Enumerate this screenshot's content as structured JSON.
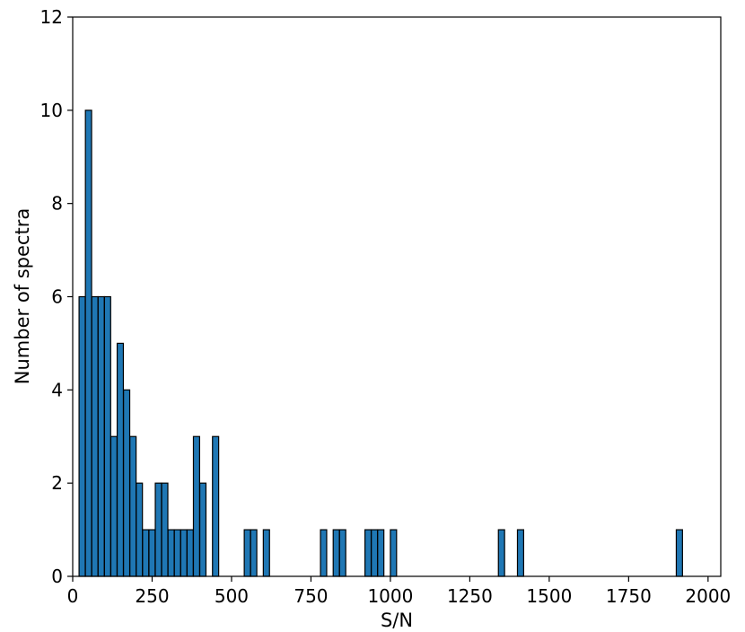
{
  "chart_data": {
    "type": "bar",
    "xlabel": "S/N",
    "ylabel": "Number of spectra",
    "xlim": [
      0,
      2040
    ],
    "ylim": [
      0,
      12
    ],
    "xticks": [
      0,
      250,
      500,
      750,
      1000,
      1250,
      1500,
      1750,
      2000
    ],
    "yticks": [
      0,
      2,
      4,
      6,
      8,
      10,
      12
    ],
    "bin_width": 19.5,
    "bins": [
      {
        "x": 20,
        "count": 6
      },
      {
        "x": 40,
        "count": 10
      },
      {
        "x": 60,
        "count": 6
      },
      {
        "x": 80,
        "count": 6
      },
      {
        "x": 100,
        "count": 6
      },
      {
        "x": 120,
        "count": 3
      },
      {
        "x": 140,
        "count": 5
      },
      {
        "x": 160,
        "count": 4
      },
      {
        "x": 180,
        "count": 3
      },
      {
        "x": 200,
        "count": 2
      },
      {
        "x": 220,
        "count": 1
      },
      {
        "x": 240,
        "count": 1
      },
      {
        "x": 260,
        "count": 2
      },
      {
        "x": 280,
        "count": 2
      },
      {
        "x": 300,
        "count": 1
      },
      {
        "x": 320,
        "count": 1
      },
      {
        "x": 340,
        "count": 1
      },
      {
        "x": 360,
        "count": 1
      },
      {
        "x": 380,
        "count": 3
      },
      {
        "x": 400,
        "count": 2
      },
      {
        "x": 440,
        "count": 3
      },
      {
        "x": 540,
        "count": 1
      },
      {
        "x": 560,
        "count": 1
      },
      {
        "x": 600,
        "count": 1
      },
      {
        "x": 780,
        "count": 1
      },
      {
        "x": 820,
        "count": 1
      },
      {
        "x": 840,
        "count": 1
      },
      {
        "x": 920,
        "count": 1
      },
      {
        "x": 940,
        "count": 1
      },
      {
        "x": 960,
        "count": 1
      },
      {
        "x": 1000,
        "count": 1
      },
      {
        "x": 1340,
        "count": 1
      },
      {
        "x": 1400,
        "count": 1
      },
      {
        "x": 1900,
        "count": 1
      }
    ],
    "grid": false,
    "bar_color": "#1f77b4",
    "edge_color": "#000000"
  }
}
